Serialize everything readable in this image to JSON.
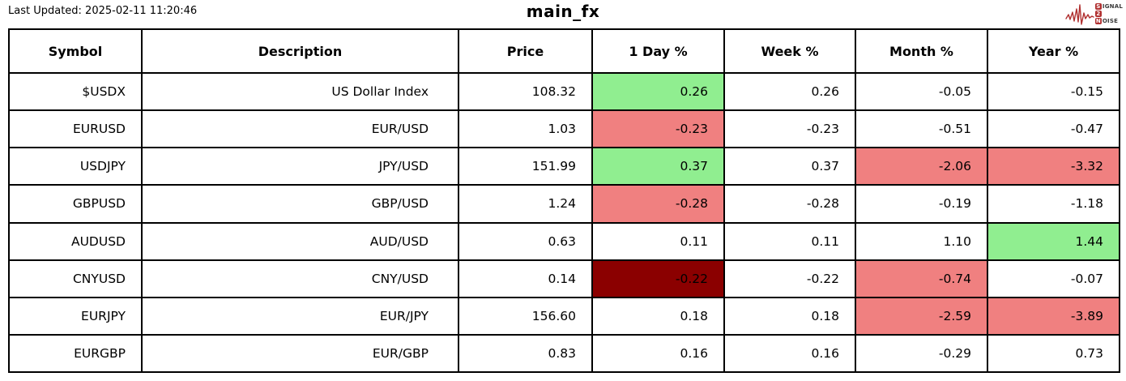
{
  "page": {
    "last_updated": "Last Updated: 2025-02-11 11:20:46",
    "title": "main_fx"
  },
  "logo": {
    "accent": "#b03030",
    "line1_initial": "S",
    "line1_rest": "IGNAL",
    "line2_initial": "2",
    "line2_rest": "",
    "line3_initial": "N",
    "line3_rest": "OISE"
  },
  "colors": {
    "pos": "#90ee90",
    "neg": "#f08080",
    "strongneg": "#8b0000"
  },
  "chart_data": {
    "type": "table",
    "title": "main_fx",
    "columns": [
      "Symbol",
      "Description",
      "Price",
      "1 Day %",
      "Week %",
      "Month %",
      "Year %"
    ],
    "column_keys": [
      "symbol",
      "description",
      "price",
      "1-day-pct",
      "week-pct",
      "month-pct",
      "year-pct"
    ],
    "rows": [
      {
        "cells": [
          {
            "v": "$USDX"
          },
          {
            "v": "US Dollar Index"
          },
          {
            "v": "108.32"
          },
          {
            "v": "0.26",
            "bg": "pos"
          },
          {
            "v": "0.26"
          },
          {
            "v": "-0.05"
          },
          {
            "v": "-0.15"
          }
        ]
      },
      {
        "cells": [
          {
            "v": "EURUSD"
          },
          {
            "v": "EUR/USD"
          },
          {
            "v": "1.03"
          },
          {
            "v": "-0.23",
            "bg": "neg"
          },
          {
            "v": "-0.23"
          },
          {
            "v": "-0.51"
          },
          {
            "v": "-0.47"
          }
        ]
      },
      {
        "cells": [
          {
            "v": "USDJPY"
          },
          {
            "v": "JPY/USD"
          },
          {
            "v": "151.99"
          },
          {
            "v": "0.37",
            "bg": "pos"
          },
          {
            "v": "0.37"
          },
          {
            "v": "-2.06",
            "bg": "neg"
          },
          {
            "v": "-3.32",
            "bg": "neg"
          }
        ]
      },
      {
        "cells": [
          {
            "v": "GBPUSD"
          },
          {
            "v": "GBP/USD"
          },
          {
            "v": "1.24"
          },
          {
            "v": "-0.28",
            "bg": "neg"
          },
          {
            "v": "-0.28"
          },
          {
            "v": "-0.19"
          },
          {
            "v": "-1.18"
          }
        ]
      },
      {
        "cells": [
          {
            "v": "AUDUSD"
          },
          {
            "v": "AUD/USD"
          },
          {
            "v": "0.63"
          },
          {
            "v": "0.11"
          },
          {
            "v": "0.11"
          },
          {
            "v": "1.10"
          },
          {
            "v": "1.44",
            "bg": "pos"
          }
        ]
      },
      {
        "cells": [
          {
            "v": "CNYUSD"
          },
          {
            "v": "CNY/USD"
          },
          {
            "v": "0.14"
          },
          {
            "v": "-0.22",
            "bg": "strongneg"
          },
          {
            "v": "-0.22"
          },
          {
            "v": "-0.74",
            "bg": "neg"
          },
          {
            "v": "-0.07"
          }
        ]
      },
      {
        "cells": [
          {
            "v": "EURJPY"
          },
          {
            "v": "EUR/JPY"
          },
          {
            "v": "156.60"
          },
          {
            "v": "0.18"
          },
          {
            "v": "0.18"
          },
          {
            "v": "-2.59",
            "bg": "neg"
          },
          {
            "v": "-3.89",
            "bg": "neg"
          }
        ]
      },
      {
        "cells": [
          {
            "v": "EURGBP"
          },
          {
            "v": "EUR/GBP"
          },
          {
            "v": "0.83"
          },
          {
            "v": "0.16"
          },
          {
            "v": "0.16"
          },
          {
            "v": "-0.29"
          },
          {
            "v": "0.73"
          }
        ]
      }
    ]
  }
}
